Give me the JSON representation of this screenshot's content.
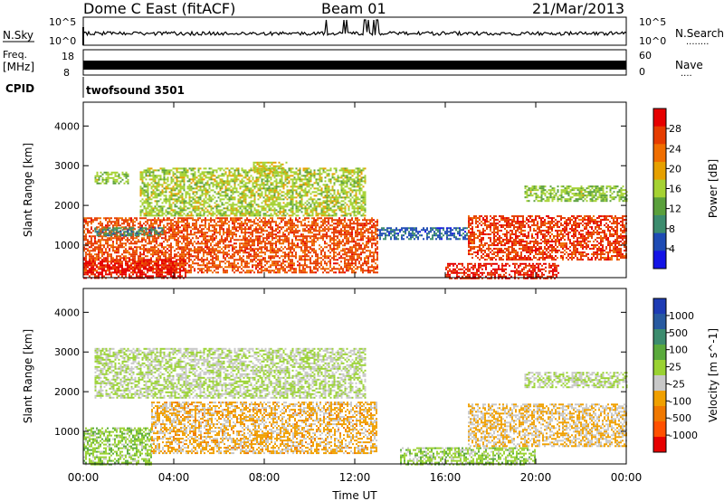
{
  "header": {
    "station_title": "Dome C East (fitACF)",
    "beam_title": "Beam 01",
    "date_title": "21/Mar/2013"
  },
  "top_panels": {
    "nsky_label": "N.Sky",
    "nsky_ticks": [
      "10^5",
      "10^0"
    ],
    "nsearch_label": "N.Search",
    "nsearch_dots": "........",
    "nsearch_ticks": [
      "10^5",
      "10^0"
    ],
    "freq_label_line1": "Freq.",
    "freq_label_line2": "[MHz]",
    "freq_ticks": [
      "18",
      "8"
    ],
    "nave_label": "Nave",
    "nave_dots": "....",
    "nave_ticks": [
      "60",
      "0"
    ],
    "cpid_label": "CPID",
    "cpid_value": "twofsound 3501"
  },
  "colors": {
    "power_scale": [
      "#1414e6",
      "#1e4bb4",
      "#3c8c6e",
      "#5aa03c",
      "#a5d232",
      "#e6a000",
      "#f06e00",
      "#e63c00",
      "#e60000"
    ],
    "velocity_scale": [
      "#1e3cb4",
      "#285aa0",
      "#3c8c6e",
      "#5aaa3c",
      "#9ad232",
      "#c8c8c8",
      "#f0a000",
      "#f07800",
      "#ff5000",
      "#e60000"
    ]
  },
  "chart_data": [
    {
      "type": "heatmap",
      "title": "Power",
      "xlabel": "Time UT",
      "ylabel": "Slant Range [km]",
      "x_tick_labels": [
        "00:00",
        "04:00",
        "08:00",
        "12:00",
        "16:00",
        "20:00",
        "00:00"
      ],
      "x_range_hours": [
        0,
        24
      ],
      "y_tick_labels": [
        "1000",
        "2000",
        "3000",
        "4000"
      ],
      "y_range_km": [
        180,
        4600
      ],
      "colorbar_label": "Power [dB]",
      "colorbar_ticks": [
        "4",
        "8",
        "12",
        "16",
        "20",
        "24",
        "28"
      ],
      "colorbar_range": [
        0,
        32
      ],
      "regions": [
        {
          "t0": 0.0,
          "t1": 13.0,
          "r0": 300,
          "r1": 1700,
          "value": 26
        },
        {
          "t0": 0.0,
          "t1": 4.5,
          "r0": 180,
          "r1": 650,
          "value": 30
        },
        {
          "t0": 0.5,
          "t1": 3.5,
          "r0": 1250,
          "r1": 1450,
          "value": 9
        },
        {
          "t0": 2.5,
          "t1": 12.5,
          "r0": 1750,
          "r1": 2950,
          "value": 16
        },
        {
          "t0": 0.5,
          "t1": 2.0,
          "r0": 2550,
          "r1": 2850,
          "value": 15
        },
        {
          "t0": 7.5,
          "t1": 9.0,
          "r0": 2800,
          "r1": 3100,
          "value": 17
        },
        {
          "t0": 13.0,
          "t1": 17.0,
          "r0": 1150,
          "r1": 1450,
          "value": 6
        },
        {
          "t0": 16.0,
          "t1": 21.0,
          "r0": 180,
          "r1": 550,
          "value": 29
        },
        {
          "t0": 17.0,
          "t1": 24.0,
          "r0": 650,
          "r1": 1750,
          "value": 27
        },
        {
          "t0": 19.5,
          "t1": 24.0,
          "r0": 2100,
          "r1": 2500,
          "value": 15
        }
      ]
    },
    {
      "type": "heatmap",
      "title": "Velocity",
      "xlabel": "Time UT",
      "ylabel": "Slant Range [km]",
      "x_tick_labels": [
        "00:00",
        "04:00",
        "08:00",
        "12:00",
        "16:00",
        "20:00",
        "00:00"
      ],
      "x_range_hours": [
        0,
        24
      ],
      "y_tick_labels": [
        "1000",
        "2000",
        "3000",
        "4000"
      ],
      "y_range_km": [
        180,
        4600
      ],
      "colorbar_label": "Velocity [m s^-1]",
      "colorbar_ticks": [
        "1000",
        "500",
        "100",
        "25",
        "-25",
        "-100",
        "-500",
        "-1000"
      ],
      "colorbar_range": [
        -1200,
        1200
      ],
      "regions": [
        {
          "t0": 0.0,
          "t1": 3.0,
          "r0": 180,
          "r1": 1100,
          "value": 150
        },
        {
          "t0": 3.0,
          "t1": 13.0,
          "r0": 450,
          "r1": 1750,
          "value": -300
        },
        {
          "t0": 0.5,
          "t1": 12.5,
          "r0": 1850,
          "r1": 3100,
          "value": 0
        },
        {
          "t0": 14.0,
          "t1": 20.0,
          "r0": 180,
          "r1": 600,
          "value": 120
        },
        {
          "t0": 17.0,
          "t1": 24.0,
          "r0": 650,
          "r1": 1700,
          "value": -250
        },
        {
          "t0": 19.5,
          "t1": 24.0,
          "r0": 2100,
          "r1": 2500,
          "value": 0
        }
      ]
    }
  ]
}
